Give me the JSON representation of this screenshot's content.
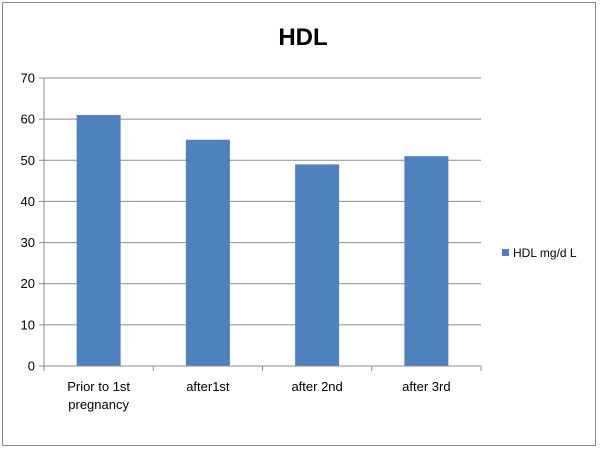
{
  "chart_data": {
    "type": "bar",
    "title": "HDL",
    "categories": [
      "Prior to 1st pregnancy",
      "after1st",
      "after 2nd",
      "after 3rd"
    ],
    "category_lines": [
      [
        "Prior to 1st",
        "pregnancy"
      ],
      [
        "after1st"
      ],
      [
        "after 2nd"
      ],
      [
        "after 3rd"
      ]
    ],
    "series": [
      {
        "name": "HDL mg/d L",
        "values": [
          61,
          55,
          49,
          51
        ],
        "color": "#4f81bd"
      }
    ],
    "xlabel": "",
    "ylabel": "",
    "ylim": [
      0,
      70
    ],
    "yticks": [
      0,
      10,
      20,
      30,
      40,
      50,
      60,
      70
    ],
    "grid": true,
    "legend_position": "right"
  }
}
